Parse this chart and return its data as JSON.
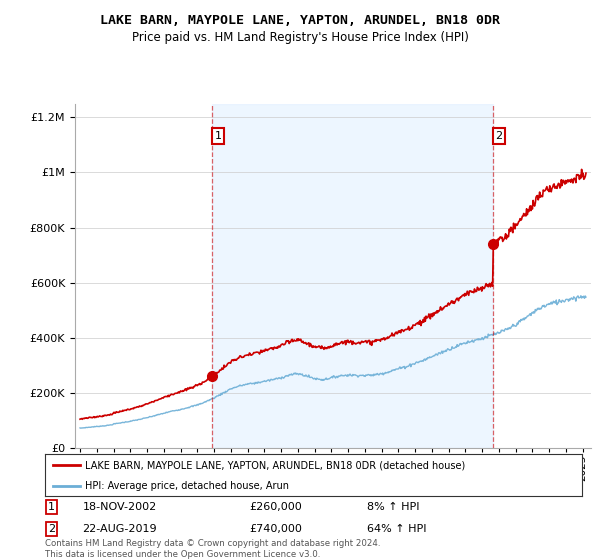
{
  "title": "LAKE BARN, MAYPOLE LANE, YAPTON, ARUNDEL, BN18 0DR",
  "subtitle": "Price paid vs. HM Land Registry's House Price Index (HPI)",
  "hpi_monthly_years": [
    1995.0,
    1995.083,
    1995.167,
    1995.25,
    1995.333,
    1995.417,
    1995.5,
    1995.583,
    1995.667,
    1995.75,
    1995.833,
    1995.917,
    1996.0,
    1996.083,
    1996.167,
    1996.25,
    1996.333,
    1996.417,
    1996.5,
    1996.583,
    1996.667,
    1996.75,
    1996.833,
    1996.917,
    1997.0,
    1997.5,
    1998.0,
    1998.5,
    1999.0,
    1999.5,
    2000.0,
    2000.5,
    2001.0,
    2001.5,
    2002.0,
    2002.5,
    2003.0,
    2003.5,
    2004.0,
    2004.5,
    2005.0,
    2005.5,
    2006.0,
    2006.5,
    2007.0,
    2007.5,
    2008.0,
    2008.5,
    2009.0,
    2009.5,
    2010.0,
    2010.5,
    2011.0,
    2011.5,
    2012.0,
    2012.5,
    2013.0,
    2013.5,
    2014.0,
    2014.5,
    2015.0,
    2015.5,
    2016.0,
    2016.5,
    2017.0,
    2017.5,
    2018.0,
    2018.5,
    2019.0,
    2019.5,
    2020.0,
    2020.5,
    2021.0,
    2021.5,
    2022.0,
    2022.5,
    2023.0,
    2023.5,
    2024.0,
    2024.5,
    2025.0
  ],
  "hpi_values": [
    72000,
    72500,
    73000,
    73500,
    74000,
    74500,
    75000,
    75500,
    76000,
    76500,
    77000,
    77500,
    78000,
    78500,
    79000,
    79500,
    80000,
    80500,
    81000,
    81500,
    82000,
    83000,
    84000,
    85000,
    87000,
    92000,
    97000,
    103000,
    110000,
    118000,
    126000,
    134000,
    140000,
    148000,
    156000,
    168000,
    182000,
    198000,
    215000,
    225000,
    232000,
    236000,
    242000,
    248000,
    255000,
    265000,
    270000,
    262000,
    252000,
    248000,
    255000,
    262000,
    265000,
    264000,
    263000,
    265000,
    270000,
    278000,
    288000,
    296000,
    308000,
    318000,
    332000,
    345000,
    358000,
    370000,
    382000,
    390000,
    398000,
    408000,
    418000,
    430000,
    448000,
    468000,
    490000,
    510000,
    522000,
    530000,
    538000,
    545000,
    550000
  ],
  "sale1_year": 2002.88,
  "sale1_price": 260000,
  "sale2_year": 2019.64,
  "sale2_price": 740000,
  "sale1_date_label": "18-NOV-2002",
  "sale1_price_label": "£260,000",
  "sale1_hpi_label": "8% ↑ HPI",
  "sale2_date_label": "22-AUG-2019",
  "sale2_price_label": "£740,000",
  "sale2_hpi_label": "64% ↑ HPI",
  "legend_label1": "LAKE BARN, MAYPOLE LANE, YAPTON, ARUNDEL, BN18 0DR (detached house)",
  "legend_label2": "HPI: Average price, detached house, Arun",
  "price_line_color": "#cc0000",
  "hpi_line_color": "#6baed6",
  "vline_color": "#cc0000",
  "shade_color": "#ddeeff",
  "ylim_max": 1250000,
  "yticks": [
    0,
    200000,
    400000,
    600000,
    800000,
    1000000,
    1200000
  ],
  "xlim_min": 1994.7,
  "xlim_max": 2025.5,
  "footer": "Contains HM Land Registry data © Crown copyright and database right 2024.\nThis data is licensed under the Open Government Licence v3.0."
}
